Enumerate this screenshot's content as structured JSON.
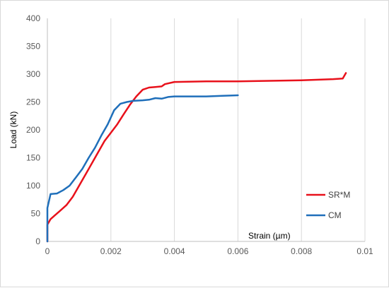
{
  "chart_data": {
    "type": "line",
    "title": "",
    "xlabel": "Strain (µm)",
    "ylabel": "Load (kN)",
    "xlim": [
      0,
      0.01
    ],
    "ylim": [
      0,
      400
    ],
    "x_ticks": [
      "0",
      "0.002",
      "0.004",
      "0.006",
      "0.008",
      "0.01"
    ],
    "y_ticks": [
      "0",
      "50",
      "100",
      "150",
      "200",
      "250",
      "300",
      "350",
      "400"
    ],
    "grid": "vertical",
    "legend_position": "right",
    "series": [
      {
        "name": "SR*M",
        "color": "#e8111b",
        "points": [
          [
            0.0,
            0
          ],
          [
            0.0,
            30
          ],
          [
            0.0001,
            40
          ],
          [
            0.0002,
            45
          ],
          [
            0.0004,
            55
          ],
          [
            0.0006,
            65
          ],
          [
            0.0008,
            80
          ],
          [
            0.001,
            100
          ],
          [
            0.0012,
            120
          ],
          [
            0.0014,
            140
          ],
          [
            0.0016,
            160
          ],
          [
            0.0018,
            180
          ],
          [
            0.002,
            195
          ],
          [
            0.0022,
            210
          ],
          [
            0.0024,
            228
          ],
          [
            0.0026,
            245
          ],
          [
            0.0028,
            260
          ],
          [
            0.003,
            272
          ],
          [
            0.0032,
            276
          ],
          [
            0.0034,
            277
          ],
          [
            0.0036,
            278
          ],
          [
            0.0037,
            282
          ],
          [
            0.004,
            286
          ],
          [
            0.005,
            287
          ],
          [
            0.006,
            287
          ],
          [
            0.007,
            288
          ],
          [
            0.008,
            289
          ],
          [
            0.009,
            291
          ],
          [
            0.0093,
            292
          ],
          [
            0.0094,
            302
          ]
        ]
      },
      {
        "name": "CM",
        "color": "#1f6fba",
        "points": [
          [
            0.0,
            0
          ],
          [
            0.0,
            60
          ],
          [
            0.0001,
            85
          ],
          [
            0.0003,
            86
          ],
          [
            0.0005,
            92
          ],
          [
            0.0007,
            100
          ],
          [
            0.0009,
            115
          ],
          [
            0.0011,
            130
          ],
          [
            0.0013,
            150
          ],
          [
            0.0015,
            168
          ],
          [
            0.0017,
            190
          ],
          [
            0.0019,
            210
          ],
          [
            0.0021,
            235
          ],
          [
            0.0023,
            247
          ],
          [
            0.0025,
            250
          ],
          [
            0.0027,
            252
          ],
          [
            0.003,
            253
          ],
          [
            0.0032,
            254
          ],
          [
            0.0034,
            257
          ],
          [
            0.0036,
            256
          ],
          [
            0.0038,
            259
          ],
          [
            0.004,
            260
          ],
          [
            0.0045,
            260
          ],
          [
            0.005,
            260
          ],
          [
            0.0055,
            261
          ],
          [
            0.006,
            262
          ]
        ]
      }
    ]
  }
}
